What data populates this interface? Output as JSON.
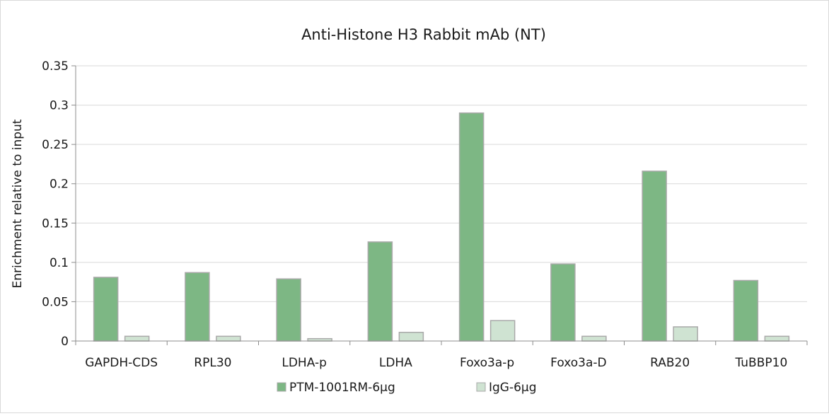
{
  "chart_data": {
    "type": "bar",
    "title": "Anti-Histone H3 Rabbit mAb (NT)",
    "ylabel": "Enrichment relative to input",
    "xlabel": "",
    "ylim": [
      0,
      0.35
    ],
    "yticks": [
      0,
      0.05,
      0.1,
      0.15,
      0.2,
      0.25,
      0.3,
      0.35
    ],
    "ytick_labels": [
      "0",
      "0.05",
      "0.1",
      "0.15",
      "0.2",
      "0.25",
      "0.3",
      "0.35"
    ],
    "grid": true,
    "legend_position": "bottom",
    "categories": [
      "GAPDH-CDS",
      "RPL30",
      "LDHA-p",
      "LDHA",
      "Foxo3a-p",
      "Foxo3a-D",
      "RAB20",
      "TuBBP10"
    ],
    "series": [
      {
        "name": "PTM-1001RM-6μg",
        "color": "#7db784",
        "stroke": "#a9a9a9",
        "values": [
          0.081,
          0.087,
          0.079,
          0.126,
          0.29,
          0.098,
          0.216,
          0.077
        ]
      },
      {
        "name": "IgG-6μg",
        "color": "#cfe3d2",
        "stroke": "#a9a9a9",
        "values": [
          0.006,
          0.006,
          0.003,
          0.011,
          0.026,
          0.006,
          0.018,
          0.006
        ]
      }
    ]
  }
}
